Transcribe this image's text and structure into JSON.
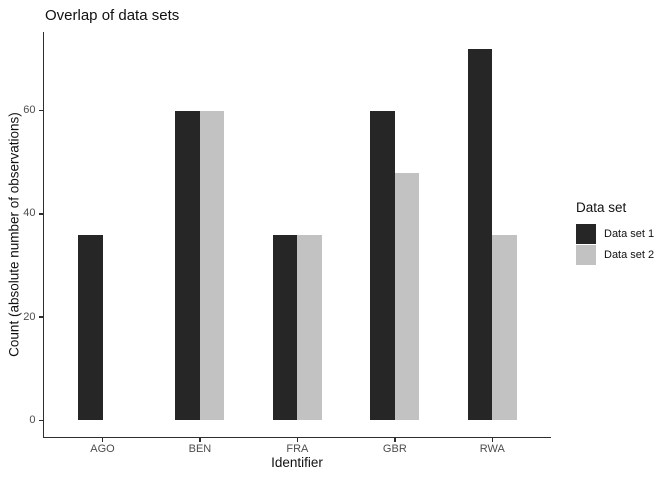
{
  "chart_data": {
    "type": "bar",
    "title": "Overlap of data sets",
    "xlabel": "Identifier",
    "ylabel": "Count (absolute number of observations)",
    "categories": [
      "AGO",
      "BEN",
      "FRA",
      "GBR",
      "RWA"
    ],
    "series": [
      {
        "name": "Data set 1",
        "color": "#262626",
        "values": [
          36,
          60,
          36,
          60,
          72
        ]
      },
      {
        "name": "Data set 2",
        "color": "#C2C2C2",
        "values": [
          null,
          60,
          36,
          48,
          36
        ]
      }
    ],
    "yticks": [
      0,
      20,
      40,
      60
    ],
    "ylim": [
      0,
      72
    ],
    "grid": false,
    "legend_title": "Data set",
    "legend_position": "right",
    "bar_layout": "dodged"
  }
}
